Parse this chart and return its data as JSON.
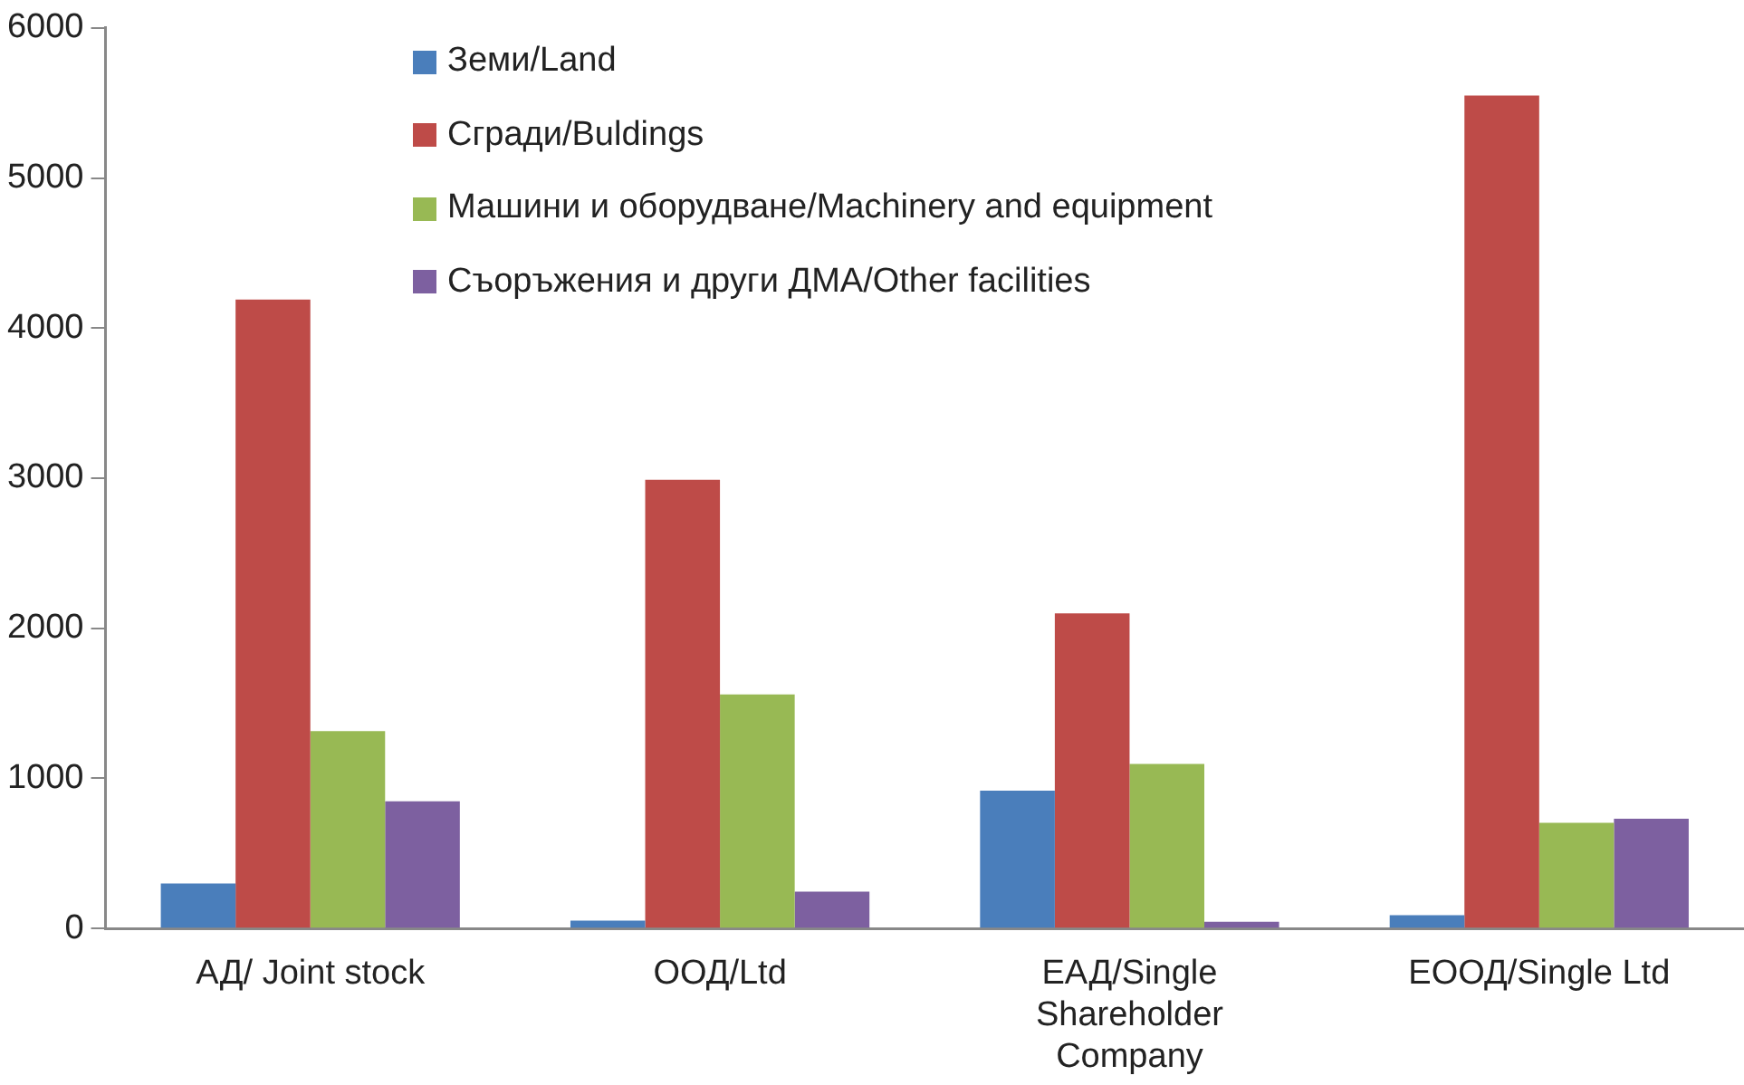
{
  "chart_data": {
    "type": "bar",
    "categories": [
      "АД/ Joint stock",
      "ООД/Ltd",
      "ЕАД/Single Shareholder Company",
      "ЕООД/Single Ltd"
    ],
    "series": [
      {
        "name": "Земи/Land",
        "color": "#4a7ebb",
        "values": [
          300,
          53,
          918,
          89
        ]
      },
      {
        "name": "Сгради/Buldings",
        "color": "#be4b48",
        "values": [
          4190,
          2990,
          2100,
          5550
        ]
      },
      {
        "name": "Машини и оборудване/Machinery and equipment",
        "color": "#98b954",
        "values": [
          1315,
          1560,
          1097,
          704
        ]
      },
      {
        "name": "Съоръжения и други ДМА/Other facilities",
        "color": "#7d60a0",
        "values": [
          847,
          245,
          45,
          731
        ]
      }
    ],
    "ylim": [
      0,
      6000
    ],
    "yticks": [
      0,
      1000,
      2000,
      3000,
      4000,
      5000,
      6000
    ],
    "grid": false,
    "legend": "top"
  }
}
